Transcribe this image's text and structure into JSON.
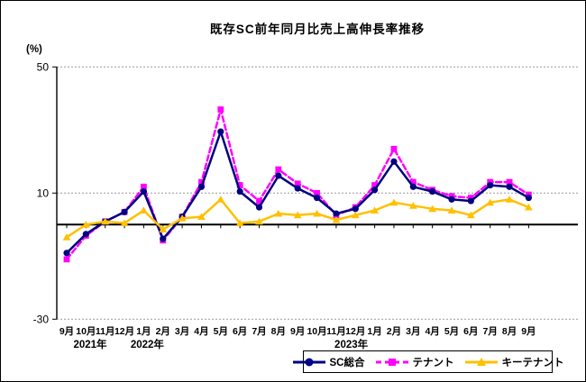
{
  "title": "既存SC前年同月比売上高伸長率推移",
  "chart_data": {
    "type": "line",
    "title": "既存SC前年同月比売上高伸長率推移",
    "ylabel": "(%)",
    "xlabel": "",
    "ylim": [
      -30,
      50
    ],
    "y_ticks": [
      50,
      10,
      -30
    ],
    "zero_line": true,
    "grid": "horizontal dotted lines at y ticks, solid black line at 0",
    "legend_position": "bottom-right",
    "categories": [
      "9月",
      "10月",
      "11月",
      "12月",
      "1月",
      "2月",
      "3月",
      "4月",
      "5月",
      "6月",
      "7月",
      "8月",
      "9月",
      "10月",
      "11月",
      "12月",
      "1月",
      "2月",
      "3月",
      "4月",
      "5月",
      "6月",
      "7月",
      "8月",
      "9月"
    ],
    "year_labels": [
      {
        "label": "2021年",
        "month_index": 0
      },
      {
        "label": "2022年",
        "month_index": 4
      },
      {
        "label": "2023年",
        "month_index": 16
      }
    ],
    "series": [
      {
        "name": "SC総合",
        "color": "#000080",
        "style": "solid",
        "marker": "circle",
        "values": [
          -9,
          -3,
          1,
          4,
          10.5,
          -4.5,
          2.5,
          12,
          29.5,
          10.5,
          5.5,
          15.5,
          11.5,
          8.5,
          3.5,
          5,
          11,
          20,
          12,
          10.5,
          8,
          7.5,
          12.5,
          12,
          8.5
        ]
      },
      {
        "name": "テナント",
        "color": "#FF00FF",
        "style": "dashed",
        "marker": "square",
        "values": [
          -11,
          -3.5,
          1,
          4,
          12,
          -5,
          2.5,
          13.5,
          36.5,
          12.5,
          7.5,
          17.5,
          13,
          10,
          3,
          5.5,
          12.5,
          24,
          13.5,
          11,
          9,
          8.5,
          13.5,
          13.5,
          9.5
        ]
      },
      {
        "name": "キーテナント",
        "color": "#FFC000",
        "style": "solid",
        "marker": "triangle",
        "values": [
          -4,
          0,
          1,
          0.5,
          4.5,
          -1.5,
          2,
          2.5,
          8,
          0.5,
          1,
          3.5,
          3,
          3.5,
          1.5,
          3,
          4.5,
          7,
          6,
          5,
          4.5,
          3,
          7,
          8,
          5.5
        ]
      }
    ]
  }
}
